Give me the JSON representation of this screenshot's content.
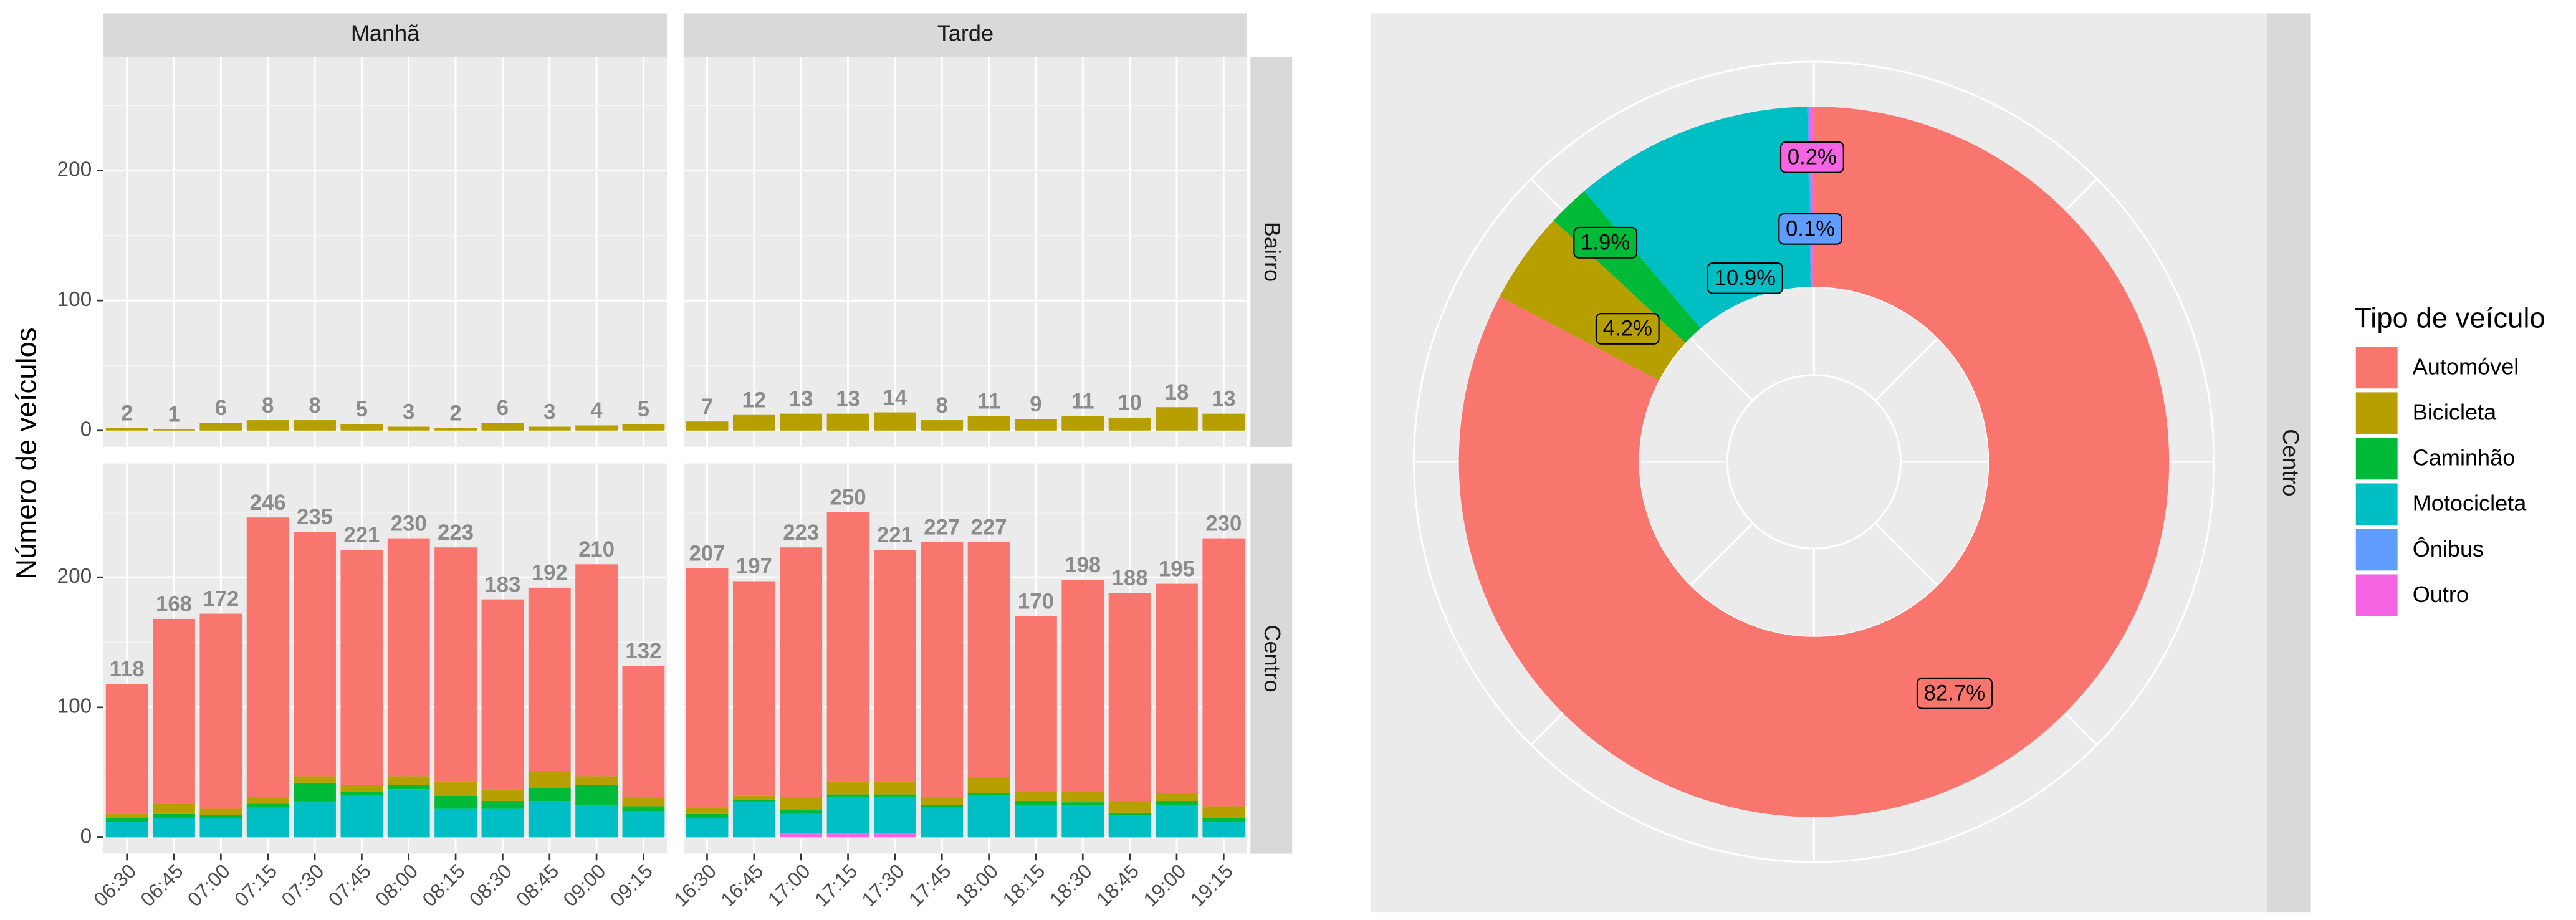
{
  "chart_data": [
    {
      "type": "facet-bar",
      "y_label": "Número de veículos",
      "ylim": [
        -12.5,
        287.5
      ],
      "yticks": [
        0,
        100,
        200
      ],
      "grid": true,
      "columns": [
        {
          "label": "Manhã",
          "categories": [
            "06:30",
            "06:45",
            "07:00",
            "07:15",
            "07:30",
            "07:45",
            "08:00",
            "08:15",
            "08:30",
            "08:45",
            "09:00",
            "09:15"
          ]
        },
        {
          "label": "Tarde",
          "categories": [
            "16:30",
            "16:45",
            "17:00",
            "17:15",
            "17:30",
            "17:45",
            "18:00",
            "18:15",
            "18:30",
            "18:45",
            "19:00",
            "19:15"
          ]
        }
      ],
      "rows": [
        {
          "label": "Bairro",
          "panels": [
            {
              "totals": [
                2,
                1,
                6,
                8,
                8,
                5,
                3,
                2,
                6,
                3,
                4,
                5
              ],
              "series": [
                {
                  "name": "Bicicleta",
                  "color": "#B79F00",
                  "values": [
                    2,
                    1,
                    6,
                    8,
                    8,
                    5,
                    3,
                    2,
                    6,
                    3,
                    4,
                    5
                  ]
                }
              ]
            },
            {
              "totals": [
                7,
                12,
                13,
                13,
                14,
                8,
                11,
                9,
                11,
                10,
                18,
                13
              ],
              "series": [
                {
                  "name": "Bicicleta",
                  "color": "#B79F00",
                  "values": [
                    7,
                    12,
                    13,
                    13,
                    14,
                    8,
                    11,
                    9,
                    11,
                    10,
                    18,
                    13
                  ]
                }
              ]
            }
          ]
        },
        {
          "label": "Centro",
          "panels": [
            {
              "totals": [
                118,
                168,
                172,
                246,
                235,
                221,
                230,
                223,
                183,
                192,
                210,
                132
              ],
              "series": [
                {
                  "name": "Automóvel",
                  "color": "#F8766D",
                  "values": [
                    100,
                    142,
                    150,
                    215,
                    188,
                    181,
                    183,
                    180,
                    146,
                    141,
                    163,
                    102
                  ]
                },
                {
                  "name": "Bicicleta",
                  "color": "#B79F00",
                  "values": [
                    3,
                    8,
                    5,
                    5,
                    5,
                    5,
                    7,
                    11,
                    9,
                    13,
                    7,
                    6
                  ]
                },
                {
                  "name": "Caminhão",
                  "color": "#00BA38",
                  "values": [
                    3,
                    3,
                    2,
                    3,
                    15,
                    3,
                    3,
                    10,
                    6,
                    10,
                    15,
                    4
                  ]
                },
                {
                  "name": "Motocicleta",
                  "color": "#00BFC4",
                  "values": [
                    12,
                    15,
                    15,
                    23,
                    27,
                    32,
                    37,
                    22,
                    22,
                    28,
                    25,
                    20
                  ]
                },
                {
                  "name": "Ônibus",
                  "color": "#619CFF",
                  "values": [
                    0,
                    0,
                    0,
                    0,
                    0,
                    0,
                    0,
                    0,
                    0,
                    0,
                    0,
                    0
                  ]
                },
                {
                  "name": "Outro",
                  "color": "#F564E3",
                  "values": [
                    0,
                    0,
                    0,
                    0,
                    0,
                    0,
                    0,
                    0,
                    0,
                    0,
                    0,
                    0
                  ]
                }
              ]
            },
            {
              "totals": [
                207,
                197,
                223,
                250,
                221,
                227,
                227,
                170,
                198,
                188,
                195,
                230
              ],
              "series": [
                {
                  "name": "Automóvel",
                  "color": "#F8766D",
                  "values": [
                    184,
                    165,
                    192,
                    207,
                    178,
                    197,
                    181,
                    135,
                    163,
                    160,
                    161,
                    206
                  ]
                },
                {
                  "name": "Bicicleta",
                  "color": "#B79F00",
                  "values": [
                    5,
                    3,
                    10,
                    10,
                    10,
                    5,
                    12,
                    7,
                    8,
                    9,
                    6,
                    9
                  ]
                },
                {
                  "name": "Caminhão",
                  "color": "#00BA38",
                  "values": [
                    3,
                    2,
                    3,
                    2,
                    2,
                    2,
                    2,
                    3,
                    2,
                    2,
                    3,
                    3
                  ]
                },
                {
                  "name": "Motocicleta",
                  "color": "#00BFC4",
                  "values": [
                    15,
                    27,
                    15,
                    28,
                    28,
                    23,
                    32,
                    25,
                    25,
                    17,
                    25,
                    12
                  ]
                },
                {
                  "name": "Ônibus",
                  "color": "#619CFF",
                  "values": [
                    0,
                    0,
                    0,
                    0,
                    0,
                    0,
                    0,
                    0,
                    0,
                    0,
                    0,
                    0
                  ]
                },
                {
                  "name": "Outro",
                  "color": "#F564E3",
                  "values": [
                    0,
                    0,
                    3,
                    3,
                    3,
                    0,
                    0,
                    0,
                    0,
                    0,
                    0,
                    0
                  ]
                }
              ]
            }
          ]
        }
      ]
    },
    {
      "type": "donut",
      "facet": "Centro",
      "legend_title": "Tipo de veículo",
      "categories": [
        "Automóvel",
        "Bicicleta",
        "Caminhão",
        "Motocicleta",
        "Ônibus",
        "Outro"
      ],
      "colors": [
        "#F8766D",
        "#B79F00",
        "#00BA38",
        "#00BFC4",
        "#619CFF",
        "#F564E3"
      ],
      "values": [
        82.7,
        4.2,
        1.9,
        10.9,
        0.1,
        0.2
      ],
      "value_labels": [
        "82.7%",
        "4.2%",
        "1.9%",
        "10.9%",
        "0.1%",
        "0.2%"
      ]
    }
  ]
}
